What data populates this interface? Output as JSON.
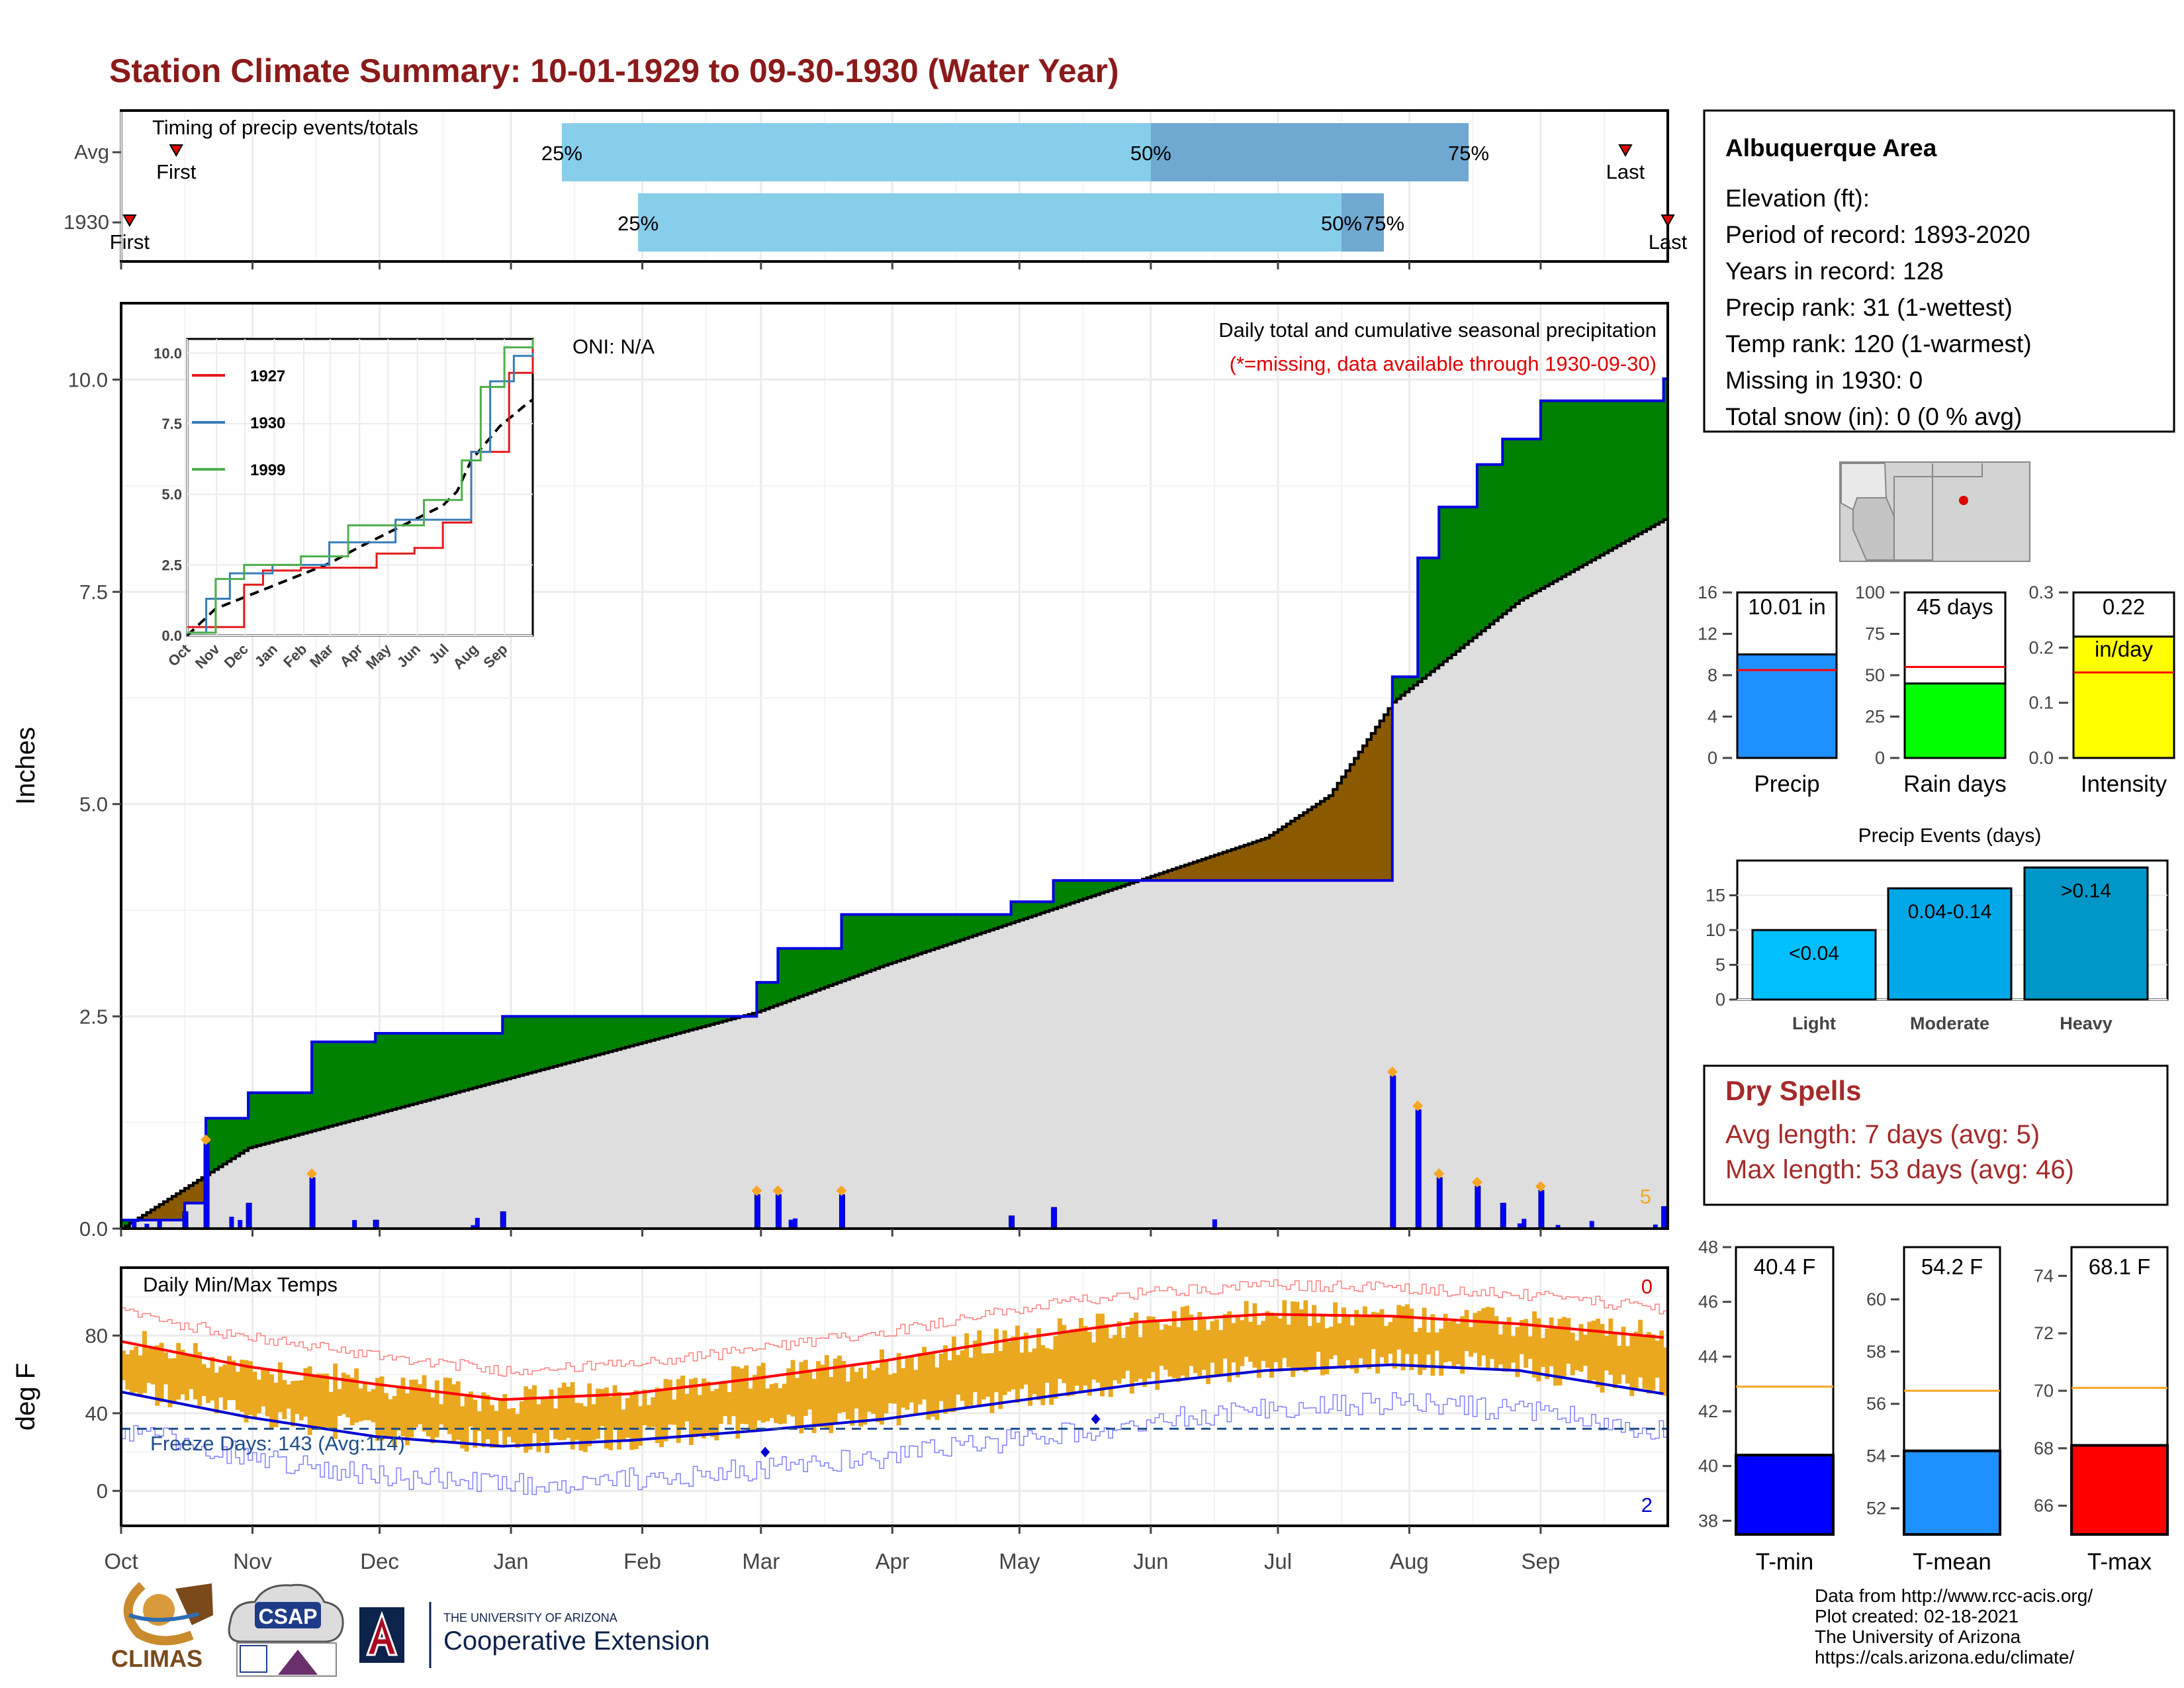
{
  "title": "Station Climate Summary: 10-01-1929 to 09-30-1930 (Water Year)",
  "timing": {
    "label": "Timing of precip events/totals",
    "rows": [
      {
        "name": "Avg",
        "p25": "25%",
        "p50": "50%",
        "p75": "75%",
        "first": "First",
        "last": "Last",
        "v25_day": 104,
        "v50_day": 243,
        "v75_day": 318,
        "first_day": 13,
        "last_day": 355
      },
      {
        "name": "1930",
        "p25": "25%",
        "p50": "50%",
        "p75": "75%",
        "first": "First",
        "last": "Last",
        "v25_day": 122,
        "v50_day": 288,
        "v75_day": 298,
        "first_day": 2,
        "last_day": 365
      }
    ]
  },
  "info": {
    "station": "Albuquerque Area",
    "lines": [
      "Elevation (ft):",
      "Period of record: 1893-2020",
      "Years in record: 128",
      "Precip rank: 31 (1-wettest)",
      "Temp rank: 120 (1-warmest)",
      "Missing in 1930: 0",
      "Total snow (in): 0 (0 % avg)"
    ]
  },
  "precip_panel": {
    "ylabel": "Inches",
    "oni": "ONI: N/A",
    "subtitle": "Daily total and cumulative seasonal precipitation",
    "missing_note": "(*=missing, data available through 1930-09-30)",
    "count_label": "5",
    "yticks": [
      "0.0",
      "2.5",
      "5.0",
      "7.5",
      "10.0"
    ],
    "ylim": [
      0,
      10.9
    ],
    "inset": {
      "series": [
        {
          "name": "1927",
          "color": "#e41a1c"
        },
        {
          "name": "1930",
          "color": "#377eb8"
        },
        {
          "name": "1999",
          "color": "#4daf4a"
        }
      ],
      "yticks": [
        "0.0",
        "2.5",
        "5.0",
        "7.5",
        "10.0"
      ],
      "xticks": [
        "Oct",
        "Nov",
        "Dec",
        "Jan",
        "Feb",
        "Mar",
        "Apr",
        "May",
        "Jun",
        "Jul",
        "Aug",
        "Sep"
      ]
    }
  },
  "temp_panel": {
    "ylabel": "deg F",
    "label": "Daily Min/Max Temps",
    "freeze_label": "Freeze Days: 143 (Avg:114)",
    "max_count": "0",
    "min_count": "2",
    "yticks": [
      "0",
      "40",
      "80"
    ],
    "ylim": [
      -18,
      115
    ]
  },
  "months": [
    "Oct",
    "Nov",
    "Dec",
    "Jan",
    "Feb",
    "Mar",
    "Apr",
    "May",
    "Jun",
    "Jul",
    "Aug",
    "Sep"
  ],
  "small_bars": [
    {
      "label": "Precip",
      "value_text": "10.01 in",
      "value": 10.01,
      "avg": 8.5,
      "ylim": [
        0,
        16
      ],
      "yticks": [
        "0",
        "4",
        "8",
        "12",
        "16"
      ],
      "color": "#1e90ff"
    },
    {
      "label": "Rain days",
      "value_text": "45 days",
      "value": 45,
      "avg": 55,
      "ylim": [
        0,
        100
      ],
      "yticks": [
        "0",
        "25",
        "50",
        "75",
        "100"
      ],
      "color": "#00ff00"
    },
    {
      "label": "Intensity",
      "value_text": "0.22",
      "value_text2": "in/day",
      "value": 0.22,
      "avg": 0.155,
      "ylim": [
        0,
        0.3
      ],
      "yticks": [
        "0.0",
        "0.1",
        "0.2",
        "0.3"
      ],
      "color": "#ffff00"
    }
  ],
  "events": {
    "title": "Precip Events (days)",
    "yticks": [
      "0",
      "5",
      "10",
      "15"
    ],
    "ylim": [
      0,
      20
    ],
    "bars": [
      {
        "label": "Light",
        "value": 10,
        "text": "<0.04",
        "color": "#00bfff"
      },
      {
        "label": "Moderate",
        "value": 16,
        "text": "0.04-0.14",
        "color": "#00a8e8"
      },
      {
        "label": "Heavy",
        "value": 19,
        "text": ">0.14",
        "color": "#0096c7"
      }
    ]
  },
  "dry_spells": {
    "title": "Dry Spells",
    "avg": "Avg length: 7 days (avg: 5)",
    "max": "Max length: 53 days (avg: 46)"
  },
  "temp_bars": [
    {
      "label": "T-min",
      "value_text": "40.4 F",
      "value": 40.4,
      "avg": 42.9,
      "ylim": [
        37.5,
        48
      ],
      "yticks": [
        "38",
        "40",
        "42",
        "44",
        "46",
        "48"
      ],
      "color": "#0000ff"
    },
    {
      "label": "T-mean",
      "value_text": "54.2 F",
      "value": 54.2,
      "avg": 56.5,
      "ylim": [
        51,
        62
      ],
      "yticks": [
        "52",
        "54",
        "56",
        "58",
        "60"
      ],
      "color": "#1e90ff"
    },
    {
      "label": "T-max",
      "value_text": "68.1 F",
      "value": 68.1,
      "avg": 70.1,
      "ylim": [
        65,
        75
      ],
      "yticks": [
        "66",
        "68",
        "70",
        "72",
        "74"
      ],
      "color": "#ff0000"
    }
  ],
  "credits": [
    "Data from http://www.rcc-acis.org/",
    "Plot created: 02-18-2021",
    "The University of Arizona",
    "https://cals.arizona.edu/climate/"
  ],
  "logos": {
    "climas": "CLIMAS",
    "csap": "CSAP",
    "ua_small": "THE UNIVERSITY OF ARIZONA",
    "ua_big": "Cooperative Extension"
  },
  "chart_data": [
    {
      "type": "line",
      "title": "Daily total and cumulative seasonal precipitation",
      "ylabel": "Inches",
      "ylim": [
        0,
        10.9
      ],
      "series": [
        {
          "name": "1930",
          "x": [
            0,
            15,
            20,
            30,
            45,
            60,
            90,
            120,
            150,
            155,
            170,
            180,
            210,
            220,
            240,
            290,
            300,
            306,
            311,
            320,
            326,
            335,
            364
          ],
          "values": [
            0.1,
            0.3,
            1.3,
            1.6,
            2.2,
            2.3,
            2.5,
            2.5,
            2.9,
            3.3,
            3.7,
            3.7,
            3.85,
            4.1,
            4.1,
            4.1,
            6.5,
            7.9,
            8.5,
            9.0,
            9.3,
            9.75,
            10.01
          ]
        },
        {
          "x": [
            0,
            30,
            60,
            90,
            120,
            150,
            180,
            210,
            240,
            270,
            285,
            300,
            330,
            364
          ],
          "values": [
            0,
            0.95,
            1.35,
            1.75,
            2.15,
            2.55,
            3.1,
            3.6,
            4.1,
            4.6,
            5.1,
            6.2,
            7.4,
            8.35
          ]
        }
      ]
    },
    {
      "type": "line",
      "title": "Daily Min/Max Temps",
      "ylabel": "deg F",
      "ylim": [
        -18,
        115
      ],
      "series": [
        {
          "x": [
            0,
            30,
            60,
            90,
            120,
            150,
            180,
            210,
            240,
            270,
            300,
            330,
            364
          ],
          "values": [
            77,
            64,
            55,
            47,
            50,
            58,
            67,
            78,
            87,
            91,
            90,
            86,
            79
          ]
        },
        {
          "x": [
            0,
            30,
            60,
            90,
            120,
            150,
            180,
            210,
            240,
            270,
            300,
            330,
            364
          ],
          "values": [
            51,
            38,
            28,
            23,
            26,
            31,
            37,
            46,
            55,
            62,
            65,
            62,
            50
          ]
        }
      ]
    }
  ]
}
